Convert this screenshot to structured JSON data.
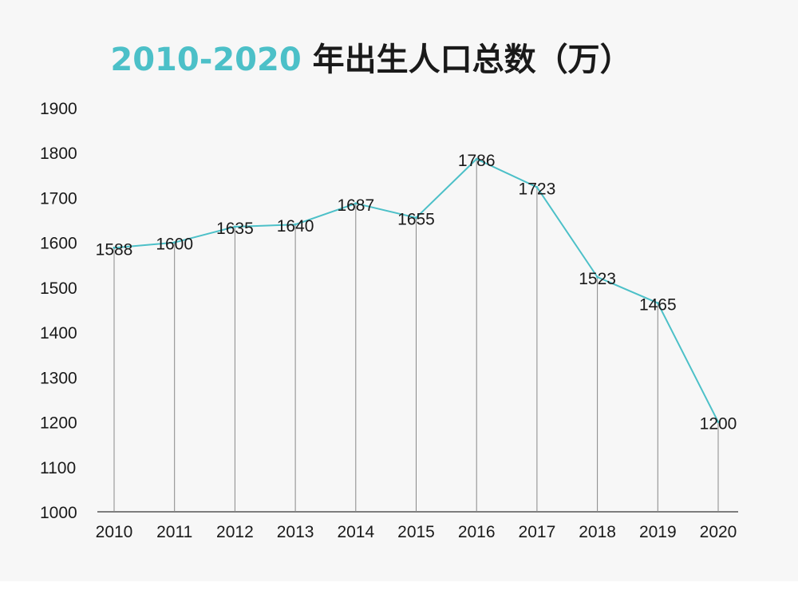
{
  "title": {
    "prefix": "2010-2020",
    "suffix": " 年出生人口总数（万）"
  },
  "colors": {
    "accent": "#4cc0c8",
    "line": "#4cc0c8",
    "axis": "#555555",
    "droplines": "#888888",
    "text": "#1a1a1a",
    "background": "#f7f7f7"
  },
  "chart_data": {
    "type": "line",
    "title": "2010-2020 年出生人口总数（万）",
    "xlabel": "",
    "ylabel": "",
    "categories": [
      "2010",
      "2011",
      "2012",
      "2013",
      "2014",
      "2015",
      "2016",
      "2017",
      "2018",
      "2019",
      "2020"
    ],
    "series": [
      {
        "name": "出生人口总数（万）",
        "values": [
          1588,
          1600,
          1635,
          1640,
          1687,
          1655,
          1786,
          1723,
          1523,
          1465,
          1200
        ]
      }
    ],
    "ylim": [
      1000,
      1900
    ],
    "yticks": [
      1000,
      1100,
      1200,
      1300,
      1400,
      1500,
      1600,
      1700,
      1800,
      1900
    ],
    "grid": false,
    "droplines": true,
    "legend": "none"
  }
}
